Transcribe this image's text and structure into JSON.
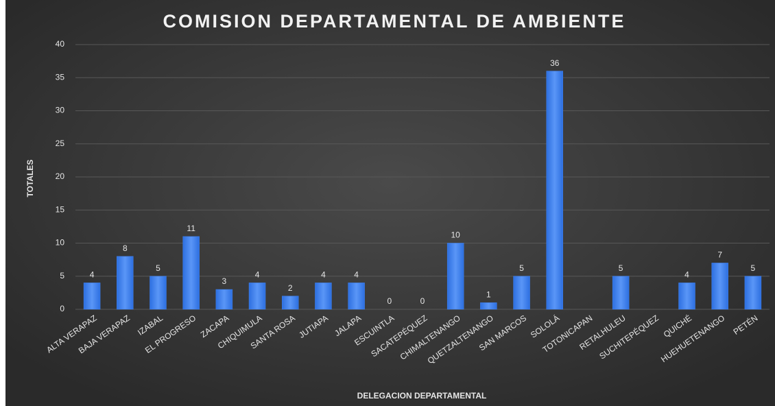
{
  "chart_data": {
    "type": "bar",
    "title": "COMISION DEPARTAMENTAL DE AMBIENTE",
    "x_label": "DELEGACION DEPARTAMENTAL",
    "y_label": "TOTALES",
    "categories": [
      "ALTA VERAPAZ",
      "BAJA VERAPAZ",
      "IZABAL",
      "EL PROGRESO",
      "ZACAPA",
      "CHIQUIMULA",
      "SANTA ROSA",
      "JUTIAPA",
      "JALAPA",
      "ESCUINTLA",
      "SACATEPÉQUEZ",
      "CHIMALTENANGO",
      "QUETZALTENANGO",
      "SAN MARCOS",
      "SOLOLÁ",
      "TOTONICAPAN",
      "RETALHULEU",
      "SUCHITEPÉQUEZ",
      "QUICHÉ",
      "HUEHUETENANGO",
      "PETÉN"
    ],
    "values": [
      4,
      8,
      5,
      11,
      3,
      4,
      2,
      4,
      4,
      0,
      0,
      10,
      1,
      5,
      36,
      null,
      5,
      null,
      4,
      7,
      5
    ],
    "color": "#3f82f2",
    "ylim": [
      0,
      40
    ],
    "yticks": [
      0,
      5,
      10,
      15,
      20,
      25,
      30,
      35,
      40
    ],
    "grid": true
  }
}
